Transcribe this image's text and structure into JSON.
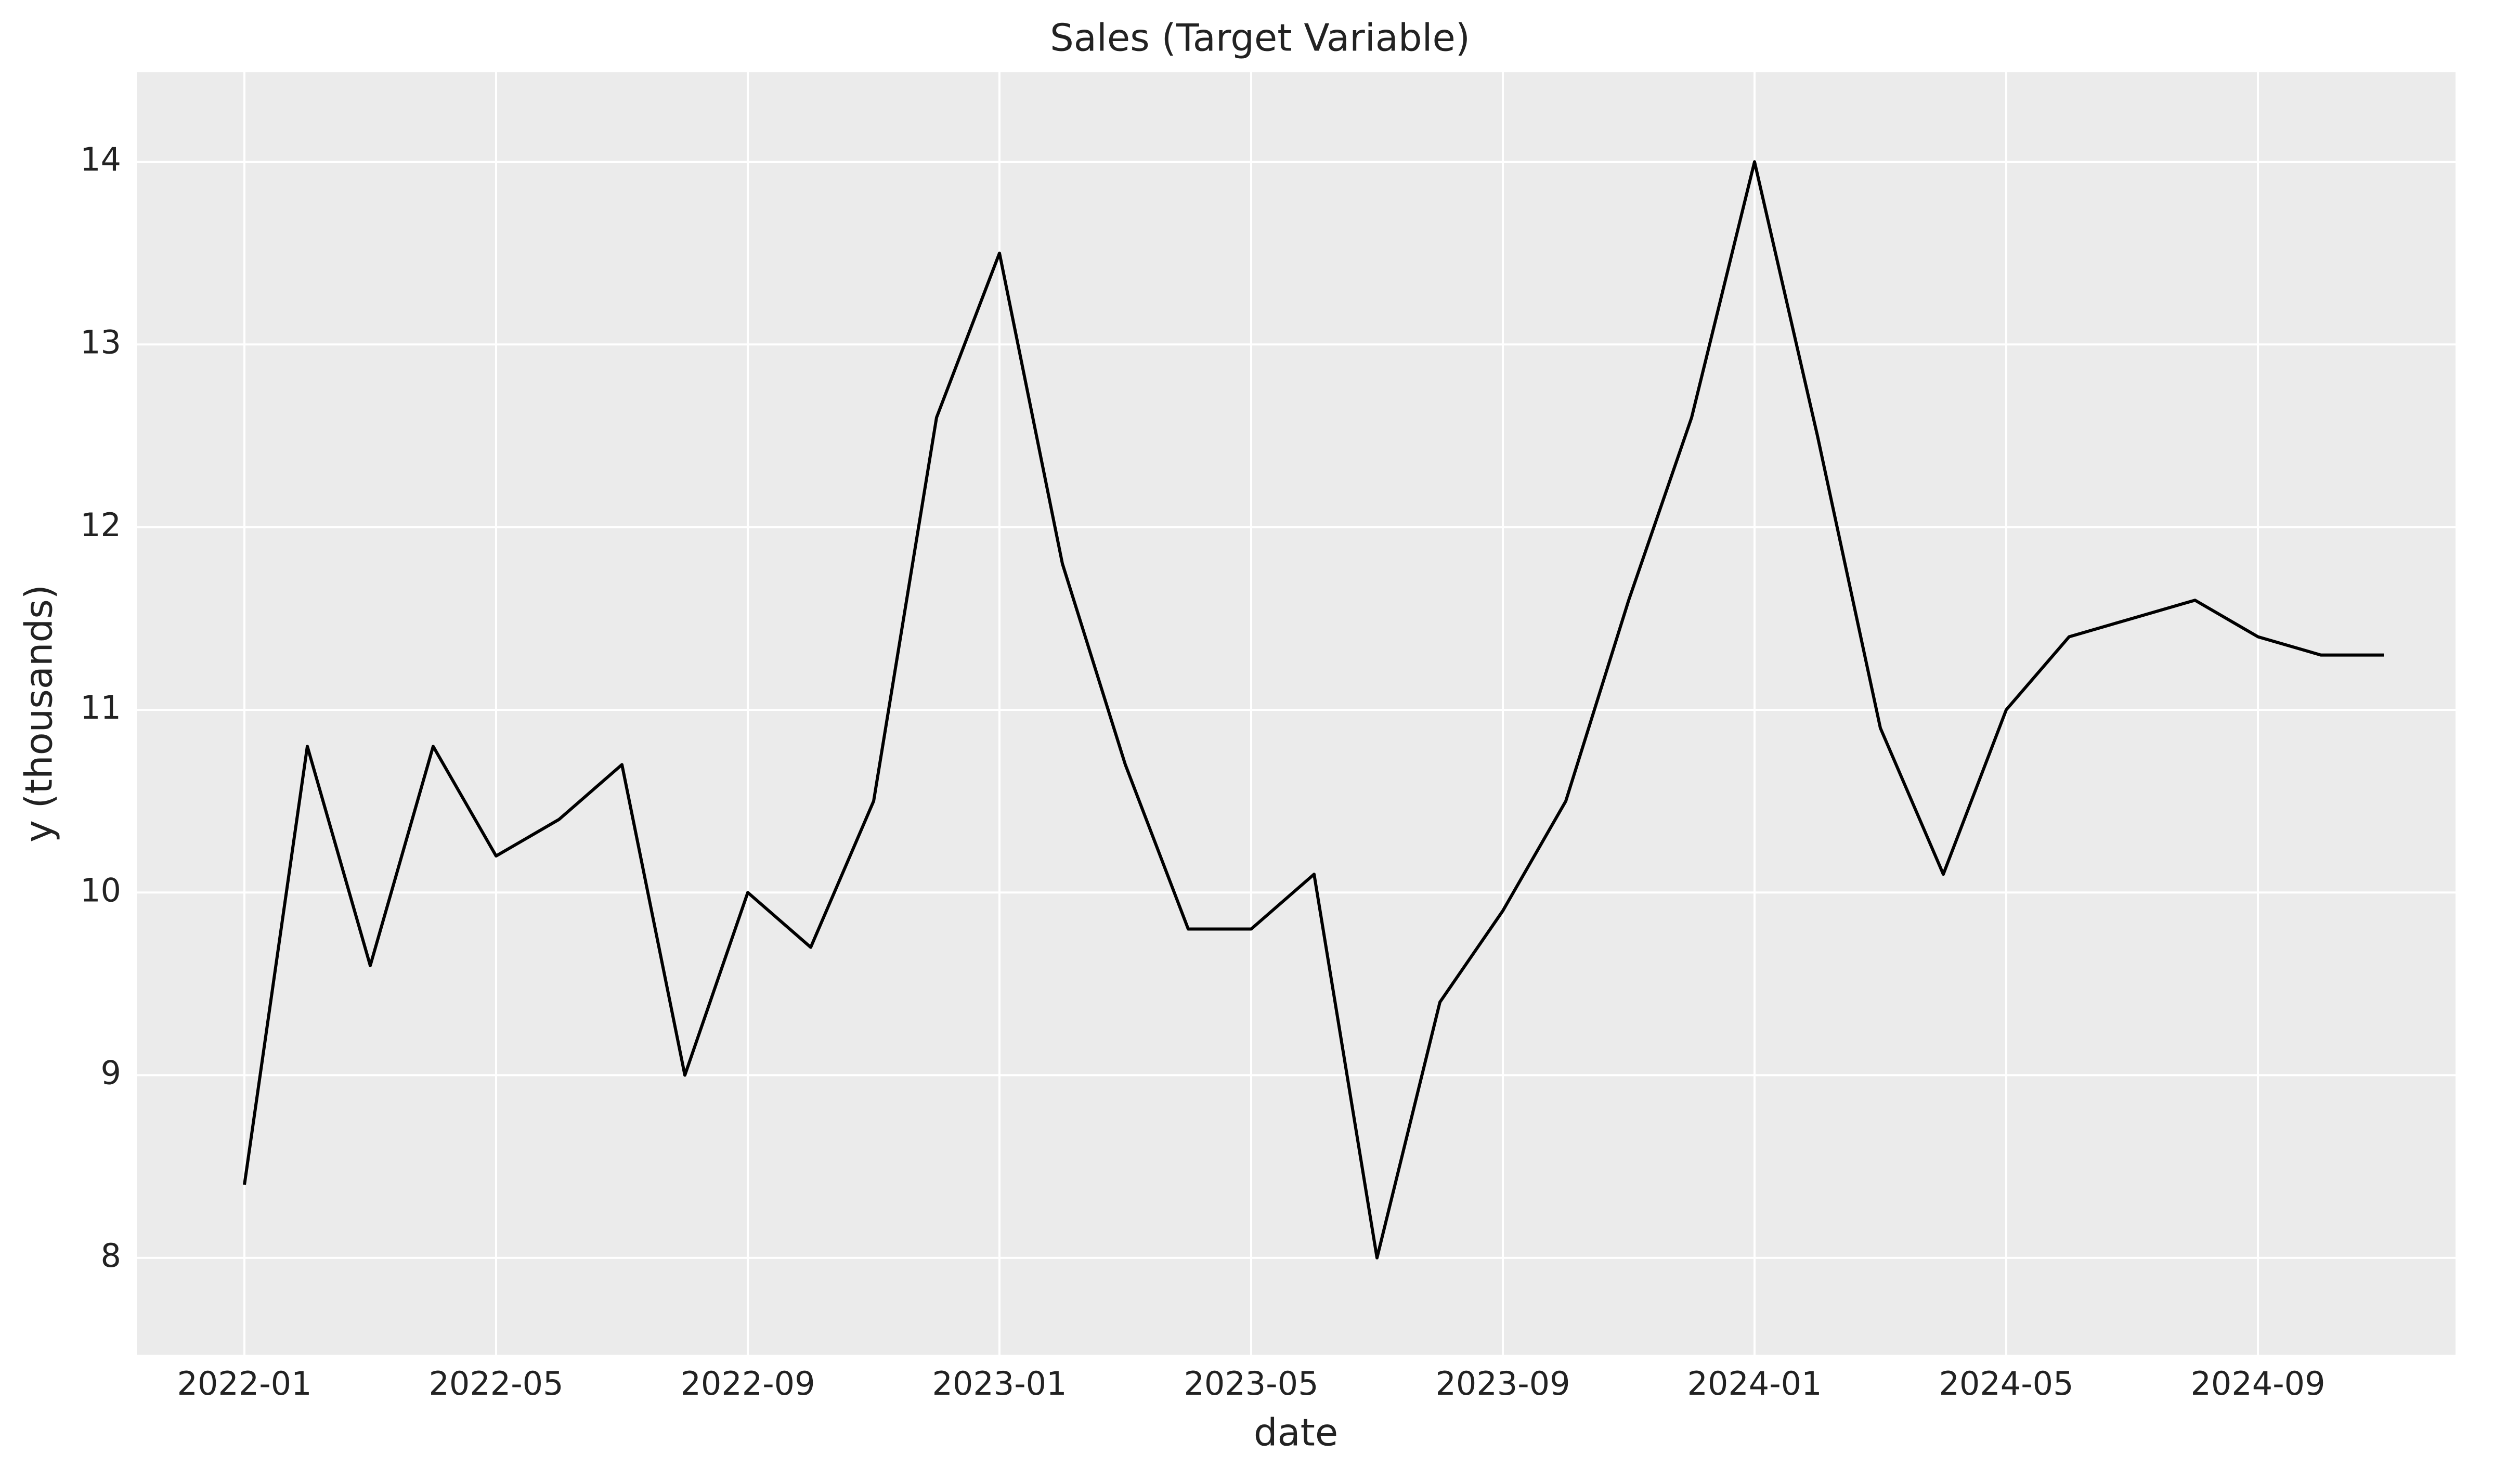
{
  "chart_data": {
    "type": "line",
    "title": "Sales (Target Variable)",
    "x_label": "date",
    "y_label": "y (thousands)",
    "x": [
      "2022-01",
      "2022-02",
      "2022-03",
      "2022-04",
      "2022-05",
      "2022-06",
      "2022-07",
      "2022-08",
      "2022-09",
      "2022-10",
      "2022-11",
      "2022-12",
      "2023-01",
      "2023-02",
      "2023-03",
      "2023-04",
      "2023-05",
      "2023-06",
      "2023-07",
      "2023-08",
      "2023-09",
      "2023-10",
      "2023-11",
      "2023-12",
      "2024-01",
      "2024-02",
      "2024-03",
      "2024-04",
      "2024-05",
      "2024-06",
      "2024-07",
      "2024-08",
      "2024-09",
      "2024-10",
      "2024-11"
    ],
    "series": [
      {
        "name": "y",
        "color": "#000000",
        "values": [
          8.4,
          10.8,
          9.6,
          10.8,
          10.2,
          10.4,
          10.7,
          9.0,
          10.0,
          9.7,
          10.5,
          12.6,
          13.5,
          11.8,
          10.7,
          9.8,
          9.8,
          10.1,
          8.0,
          9.4,
          9.9,
          10.5,
          11.6,
          12.6,
          14.0,
          12.5,
          10.9,
          10.1,
          11.0,
          11.4,
          11.5,
          11.6,
          11.4,
          11.3,
          11.3
        ]
      }
    ],
    "xticks": [
      "2022-01",
      "2022-05",
      "2022-09",
      "2023-01",
      "2023-05",
      "2023-09",
      "2024-01",
      "2024-05",
      "2024-09"
    ],
    "ylim": [
      7.47,
      14.49
    ],
    "yticks": [
      8,
      9,
      10,
      11,
      12,
      13,
      14
    ],
    "grid": true
  }
}
